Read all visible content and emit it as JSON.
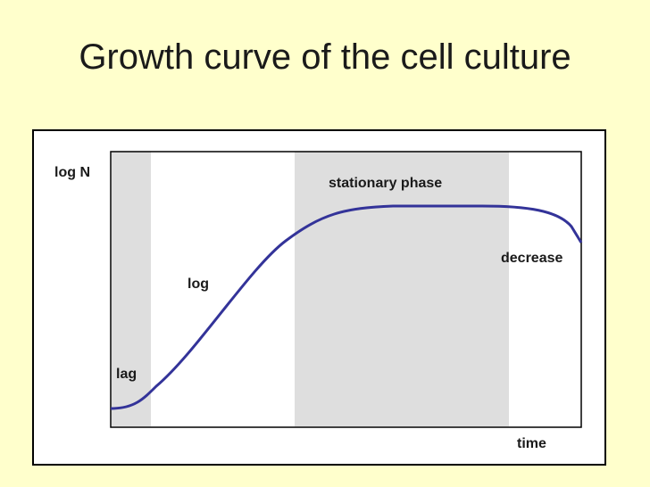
{
  "slide": {
    "title": "Growth curve of the cell culture"
  },
  "diagram": {
    "y_axis_label": "log N",
    "x_axis_label": "time",
    "phases": {
      "lag": "lag",
      "log": "log",
      "stationary": "stationary phase",
      "decrease": "decrease"
    },
    "colors": {
      "background": "#ffffcc",
      "shaded_region": "#dedede",
      "curve": "#333399"
    }
  }
}
